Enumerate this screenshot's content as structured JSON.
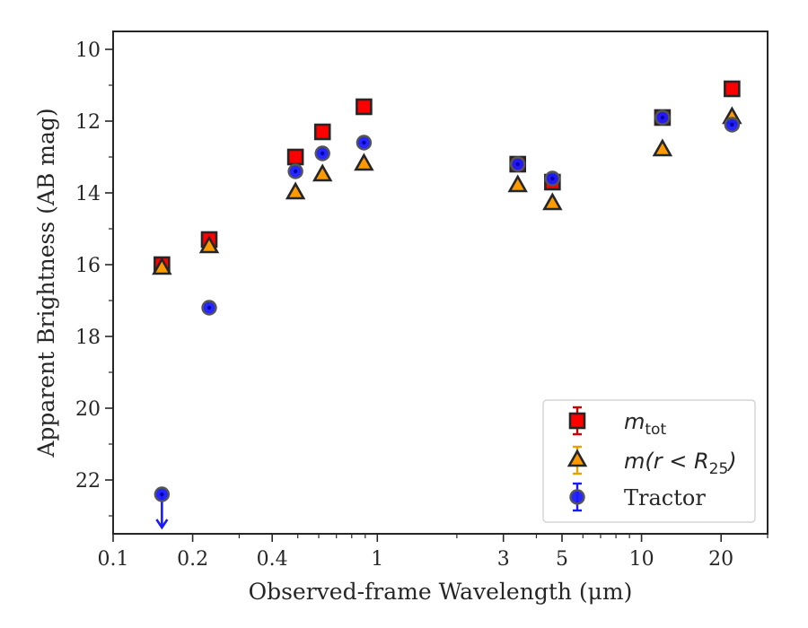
{
  "chart_data": {
    "type": "scatter",
    "xlabel": "Observed-frame Wavelength (μm)",
    "ylabel": "Apparent Brightness (AB mag)",
    "x_scale": "log",
    "xlim": [
      0.1,
      30
    ],
    "ylim": [
      23.5,
      9.5
    ],
    "y_inverted": true,
    "grid": false,
    "legend_placement": "lower right",
    "x_ticks": [
      {
        "value": 0.1,
        "label": "0.1"
      },
      {
        "value": 0.2,
        "label": "0.2"
      },
      {
        "value": 0.4,
        "label": "0.4"
      },
      {
        "value": 1,
        "label": "1"
      },
      {
        "value": 3,
        "label": "3"
      },
      {
        "value": 5,
        "label": "5"
      },
      {
        "value": 10,
        "label": "10"
      },
      {
        "value": 20,
        "label": "20"
      }
    ],
    "y_ticks": [
      {
        "value": 10,
        "label": "10"
      },
      {
        "value": 12,
        "label": "12"
      },
      {
        "value": 14,
        "label": "14"
      },
      {
        "value": 16,
        "label": "16"
      },
      {
        "value": 18,
        "label": "18"
      },
      {
        "value": 20,
        "label": "20"
      },
      {
        "value": 22,
        "label": "22"
      }
    ],
    "series": [
      {
        "name": "m_tot",
        "legend_label": {
          "main": "m",
          "sub": "tot"
        },
        "marker": "square",
        "color": "#ff0000",
        "errorbar_color": "#cc0000",
        "x": [
          0.153,
          0.231,
          0.49,
          0.62,
          0.89,
          3.4,
          4.6,
          12.0,
          22.0
        ],
        "y": [
          16.0,
          15.3,
          13.0,
          12.3,
          11.6,
          13.2,
          13.7,
          11.9,
          11.1
        ]
      },
      {
        "name": "m(r < R25)",
        "legend_label": {
          "main": "m(r < R",
          "sub": "25",
          "close": ")"
        },
        "marker": "triangle",
        "color": "#ff9900",
        "errorbar_color": "#e6a000",
        "x": [
          0.153,
          0.231,
          0.49,
          0.62,
          0.89,
          3.4,
          4.6,
          12.0,
          22.0
        ],
        "y": [
          16.1,
          15.5,
          14.0,
          13.5,
          13.2,
          13.8,
          14.3,
          12.8,
          11.9
        ]
      },
      {
        "name": "Tractor",
        "legend_label": {
          "main": "Tractor"
        },
        "marker": "circle",
        "color": "#1a1aff",
        "errorbar_color": "#1a1aff",
        "x": [
          0.153,
          0.231,
          0.49,
          0.62,
          0.89,
          3.4,
          4.6,
          12.0,
          22.0
        ],
        "y": [
          22.4,
          17.2,
          13.4,
          12.9,
          12.6,
          13.2,
          13.6,
          11.9,
          12.1
        ],
        "upper_limit": [
          true,
          false,
          false,
          false,
          false,
          false,
          false,
          false,
          false
        ]
      }
    ]
  }
}
